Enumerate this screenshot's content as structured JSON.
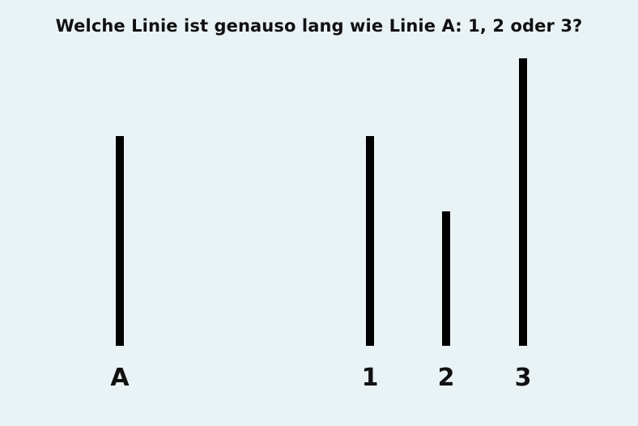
{
  "question": "Welche Linie ist genauso lang wie Linie A: 1, 2 oder 3?",
  "line_color": "#000000",
  "background_color": "#e9f2f5",
  "lines": [
    {
      "id": "line-A",
      "label": "A"
    },
    {
      "id": "line-1",
      "label": "1"
    },
    {
      "id": "line-2",
      "label": "2"
    },
    {
      "id": "line-3",
      "label": "3"
    }
  ]
}
